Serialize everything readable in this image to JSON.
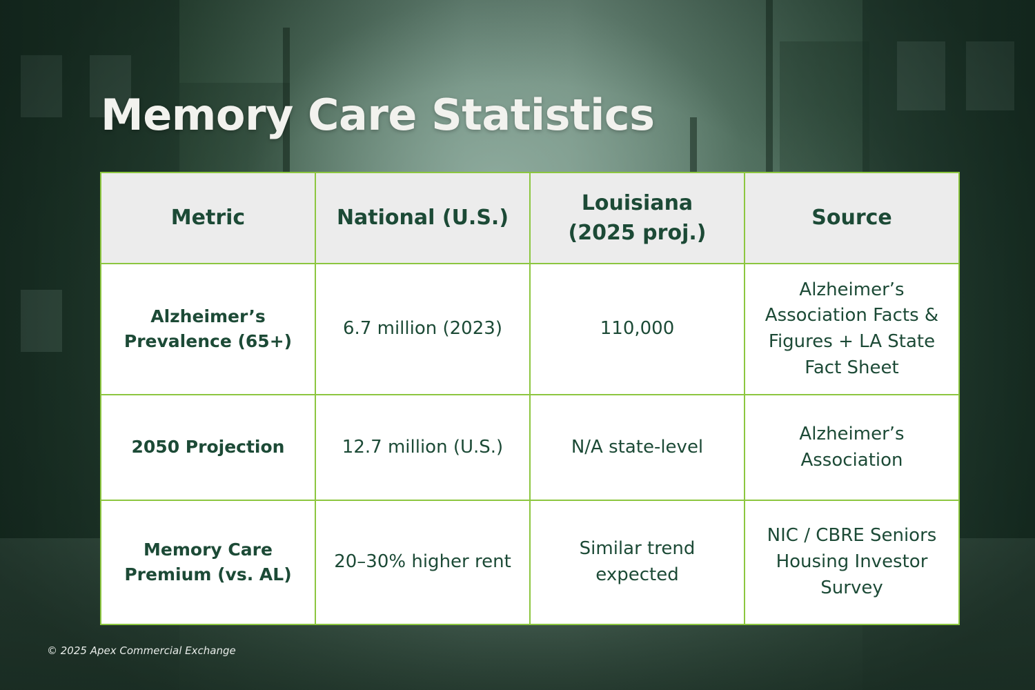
{
  "title": "Memory Care Statistics",
  "table": {
    "headers": [
      "Metric",
      "National (U.S.)",
      "Louisiana\n(2025 proj.)",
      "Source"
    ],
    "rows": [
      {
        "metric": "Alzheimer’s\nPrevalence (65+)",
        "national": "6.7 million (2023)",
        "louisiana": "110,000",
        "source": "Alzheimer’s\nAssociation Facts &\nFigures + LA State\nFact Sheet"
      },
      {
        "metric": "2050 Projection",
        "national": "12.7 million (U.S.)",
        "louisiana": "N/A state-level",
        "source": "Alzheimer’s\nAssociation"
      },
      {
        "metric": "Memory Care\nPremium (vs. AL)",
        "national": "20–30% higher rent",
        "louisiana": "Similar trend\nexpected",
        "source": "NIC / CBRE Seniors\nHousing Investor\nSurvey"
      }
    ]
  },
  "footer": {
    "copyright": "© 2025 Apex Commercial Exchange"
  },
  "colors": {
    "border": "#8cc63f",
    "text": "#1c4a36",
    "header_bg": "#ececec",
    "title": "#f2f2ee"
  }
}
